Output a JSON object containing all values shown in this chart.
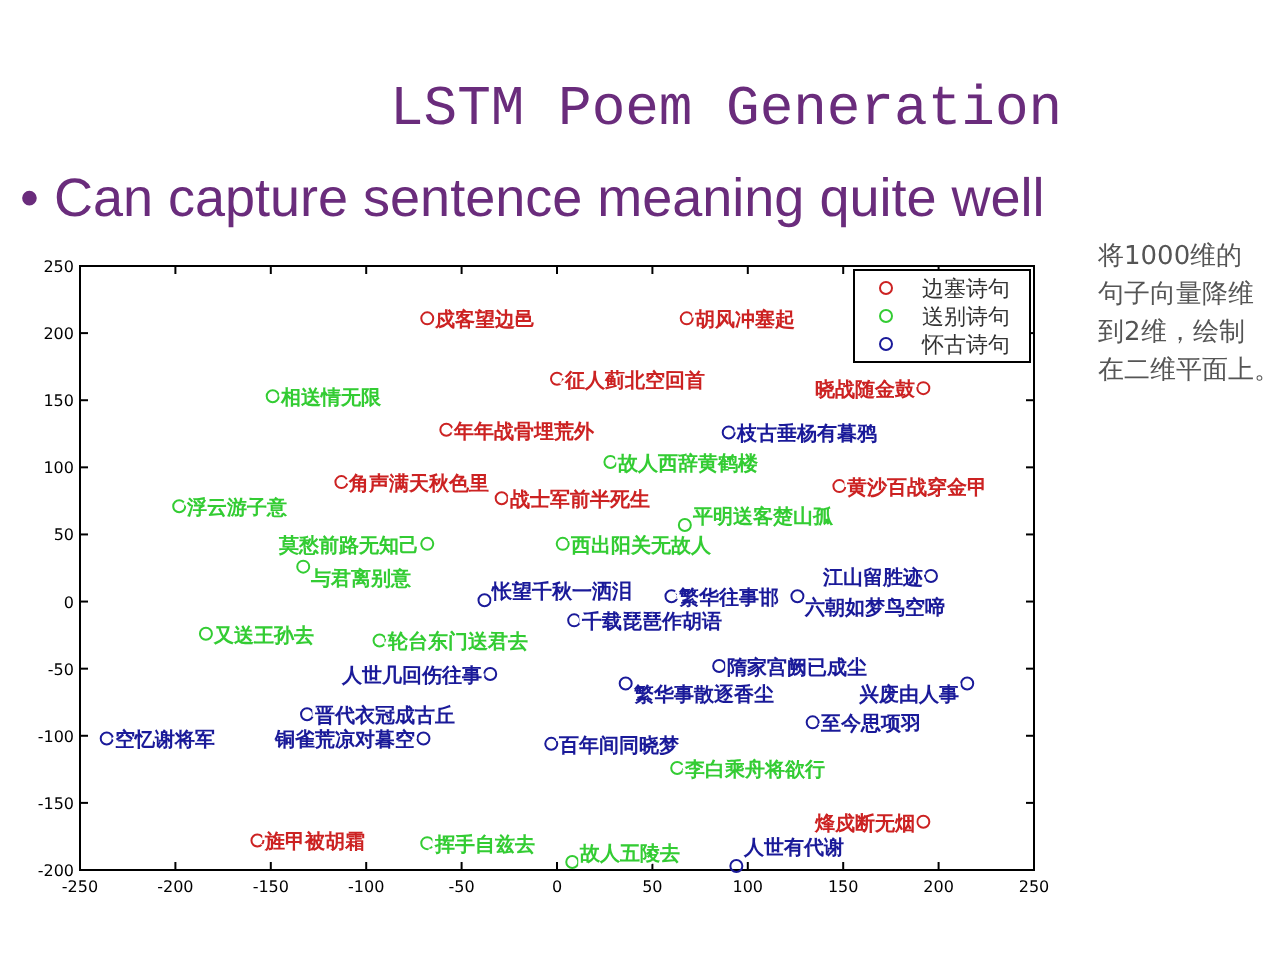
{
  "chart_data": {
    "type": "scatter",
    "title": "LSTM Poem Generation",
    "subtitle": "• Can capture sentence meaning quite well",
    "annotations": [
      "将1000维的句子向量降维到2维，绘制在二维平面上。"
    ],
    "xlim": [
      -250,
      250
    ],
    "xticks": [
      -250,
      -200,
      -150,
      -100,
      -50,
      0,
      50,
      100,
      150,
      200,
      250
    ],
    "ylim": [
      -200,
      250
    ],
    "yticks": [
      -200,
      -150,
      -100,
      -50,
      0,
      50,
      100,
      150,
      200,
      250
    ],
    "marker": "circle",
    "legend": "top right",
    "grid": false,
    "series": [
      {
        "name": "边塞诗句",
        "color": "#cc2222",
        "x": [
          -68,
          68,
          0,
          192,
          -58,
          -113,
          -29,
          148,
          -157,
          192
        ],
        "values": [
          211,
          211,
          166,
          159,
          128,
          89,
          77,
          86,
          -178,
          -164
        ],
        "value_labels": [
          "戍客望边邑",
          "胡风冲塞起",
          "征人蓟北空回首",
          "晓战随金鼓",
          "年年战骨埋荒外",
          "角声满天秋色里",
          "战士军前半死生",
          "黄沙百战穿金甲",
          "旌甲被胡霜",
          "烽戍断无烟"
        ]
      },
      {
        "name": "送别诗句",
        "color": "#33cc33",
        "x": [
          -149,
          28,
          -198,
          -68,
          3,
          67,
          -133,
          -184,
          -93,
          -68,
          8,
          63
        ],
        "values": [
          153,
          104,
          71,
          43,
          43,
          57,
          26,
          -24,
          -29,
          -180,
          -194,
          -124
        ],
        "value_labels": [
          "相送情无限",
          "故人西辞黄鹤楼",
          "浮云游子意",
          "莫愁前路无知己",
          "西出阳关无故人",
          "平明送客楚山孤",
          "与君离别意",
          "又送王孙去",
          "轮台东门送君去",
          "挥手自兹去",
          "故人五陵去",
          "李白乘舟将欲行"
        ]
      },
      {
        "name": "怀古诗句",
        "color": "#1a1a99",
        "x": [
          90,
          196,
          -38,
          60,
          126,
          9,
          -35,
          36,
          85,
          215,
          134,
          -131,
          -236,
          -70,
          -3,
          94
        ],
        "values": [
          126,
          19,
          1,
          4,
          4,
          -14,
          -54,
          -61,
          -48,
          -61,
          -90,
          -84,
          -102,
          -102,
          -106,
          -197
        ],
        "value_labels": [
          "枝古垂杨有暮鸦",
          "江山留胜迹",
          "怅望千秋一洒泪",
          "繁华往事邯",
          "六朝如梦鸟空啼",
          "千载琵琶作胡语",
          "人世几回伤往事",
          "繁华事散逐香尘",
          "隋家宫阙已成尘",
          "兴废由人事",
          "至今思项羽",
          "晋代衣冠成古丘",
          "空忆谢将军",
          "铜雀荒凉对暮空",
          "百年间同晓梦",
          "人世有代谢"
        ]
      }
    ]
  }
}
